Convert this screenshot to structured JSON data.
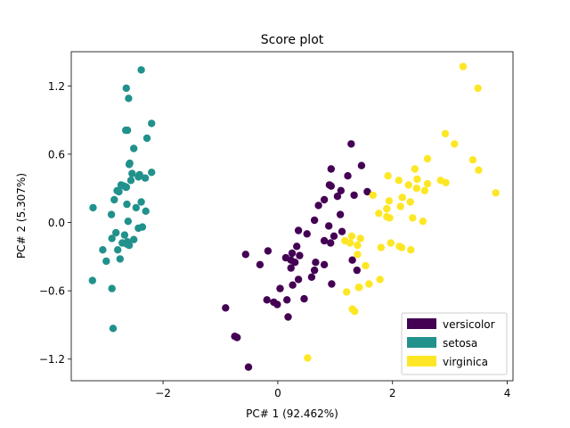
{
  "chart_data": {
    "type": "scatter",
    "title": "Score plot",
    "xlabel": "PC# 1 (92.462%)",
    "ylabel": "PC# 2 (5.307%)",
    "xlim": [
      -3.6,
      4.1
    ],
    "ylim": [
      -1.39,
      1.5
    ],
    "xticks": [
      -2,
      0,
      2,
      4
    ],
    "yticks": [
      -1.2,
      -0.6,
      0.0,
      0.6,
      1.2
    ],
    "xtick_labels": [
      "−2",
      "0",
      "2",
      "4"
    ],
    "ytick_labels": [
      "−1.2",
      "−0.6",
      "0.0",
      "0.6",
      "1.2"
    ],
    "legend_position": "lower-right",
    "series": [
      {
        "name": "versicolor",
        "color": "#440154",
        "points": [
          [
            1.28,
            0.69
          ],
          [
            0.93,
            0.32
          ],
          [
            1.46,
            0.5
          ],
          [
            0.18,
            -0.83
          ],
          [
            1.09,
            0.07
          ],
          [
            0.64,
            -0.42
          ],
          [
            1.1,
            0.28
          ],
          [
            -0.75,
            -1.0
          ],
          [
            1.04,
            0.23
          ],
          [
            -0.01,
            -0.72
          ],
          [
            -0.51,
            -1.27
          ],
          [
            0.51,
            -0.1
          ],
          [
            0.26,
            -0.55
          ],
          [
            0.98,
            -0.12
          ],
          [
            -0.17,
            -0.25
          ],
          [
            0.93,
            0.47
          ],
          [
            0.66,
            -0.35
          ],
          [
            0.23,
            -0.33
          ],
          [
            0.94,
            -0.54
          ],
          [
            0.04,
            -0.58
          ],
          [
            1.12,
            -0.08
          ],
          [
            0.36,
            -0.07
          ],
          [
            1.3,
            -0.33
          ],
          [
            0.92,
            -0.18
          ],
          [
            0.71,
            0.15
          ],
          [
            0.9,
            0.33
          ],
          [
            1.33,
            0.24
          ],
          [
            1.56,
            0.27
          ],
          [
            0.81,
            -0.16
          ],
          [
            -0.31,
            -0.37
          ],
          [
            -0.07,
            -0.7
          ],
          [
            -0.19,
            -0.68
          ],
          [
            0.14,
            -0.31
          ],
          [
            1.38,
            -0.42
          ],
          [
            0.59,
            -0.48
          ],
          [
            0.81,
            0.2
          ],
          [
            1.22,
            0.41
          ],
          [
            0.81,
            -0.37
          ],
          [
            0.25,
            -0.27
          ],
          [
            0.16,
            -0.68
          ],
          [
            0.46,
            -0.67
          ],
          [
            0.89,
            -0.03
          ],
          [
            0.23,
            -0.4
          ],
          [
            -0.71,
            -1.01
          ],
          [
            0.36,
            -0.5
          ],
          [
            0.33,
            -0.21
          ],
          [
            0.38,
            -0.29
          ],
          [
            0.64,
            0.02
          ],
          [
            -0.91,
            -0.75
          ],
          [
            0.3,
            -0.35
          ],
          [
            -0.56,
            -0.28
          ]
        ]
      },
      {
        "name": "setosa",
        "color": "#21918c",
        "points": [
          [
            -2.68,
            0.32
          ],
          [
            -2.71,
            -0.18
          ],
          [
            -2.89,
            -0.14
          ],
          [
            -2.75,
            -0.32
          ],
          [
            -2.73,
            0.33
          ],
          [
            -2.28,
            0.74
          ],
          [
            -2.82,
            -0.09
          ],
          [
            -2.63,
            0.16
          ],
          [
            -2.89,
            -0.58
          ],
          [
            -2.67,
            -0.11
          ],
          [
            -2.51,
            0.65
          ],
          [
            -2.61,
            0.01
          ],
          [
            -2.79,
            -0.24
          ],
          [
            -3.23,
            -0.51
          ],
          [
            -2.64,
            1.18
          ],
          [
            -2.38,
            1.34
          ],
          [
            -2.62,
            0.81
          ],
          [
            -2.65,
            0.31
          ],
          [
            -2.2,
            0.87
          ],
          [
            -2.59,
            0.51
          ],
          [
            -2.31,
            0.39
          ],
          [
            -2.54,
            0.43
          ],
          [
            -3.22,
            0.13
          ],
          [
            -2.3,
            0.1
          ],
          [
            -2.36,
            -0.04
          ],
          [
            -2.51,
            -0.15
          ],
          [
            -2.47,
            0.13
          ],
          [
            -2.56,
            0.37
          ],
          [
            -2.64,
            0.31
          ],
          [
            -2.63,
            -0.19
          ],
          [
            -2.59,
            -0.2
          ],
          [
            -2.41,
            0.42
          ],
          [
            -2.65,
            0.81
          ],
          [
            -2.6,
            1.09
          ],
          [
            -2.99,
            -0.34
          ],
          [
            -2.9,
            0.07
          ],
          [
            -2.77,
            0.27
          ],
          [
            -2.85,
            0.2
          ],
          [
            -2.38,
            0.18
          ],
          [
            -2.62,
            -0.17
          ],
          [
            -2.43,
            -0.05
          ],
          [
            -2.2,
            0.44
          ],
          [
            -2.64,
            0.31
          ],
          [
            -2.87,
            -0.93
          ],
          [
            -2.43,
            0.4
          ],
          [
            -3.05,
            -0.24
          ],
          [
            -2.8,
            0.28
          ],
          [
            -2.58,
            0.52
          ]
        ]
      },
      {
        "name": "virginica",
        "color": "#fde725",
        "points": [
          [
            2.53,
            0.01
          ],
          [
            1.41,
            -0.57
          ],
          [
            2.61,
            0.34
          ],
          [
            1.97,
            -0.18
          ],
          [
            2.35,
            0.04
          ],
          [
            3.4,
            0.55
          ],
          [
            0.52,
            -1.19
          ],
          [
            2.93,
            0.35
          ],
          [
            2.32,
            -0.24
          ],
          [
            2.92,
            0.78
          ],
          [
            1.66,
            0.24
          ],
          [
            1.8,
            -0.22
          ],
          [
            2.17,
            0.22
          ],
          [
            1.34,
            -0.78
          ],
          [
            1.59,
            -0.54
          ],
          [
            1.9,
            0.12
          ],
          [
            1.95,
            0.04
          ],
          [
            3.49,
            1.18
          ],
          [
            3.8,
            0.26
          ],
          [
            1.3,
            -0.76
          ],
          [
            2.43,
            0.38
          ],
          [
            1.2,
            -0.61
          ],
          [
            3.5,
            0.46
          ],
          [
            1.39,
            -0.2
          ],
          [
            2.28,
            0.33
          ],
          [
            2.61,
            0.56
          ],
          [
            1.26,
            -0.18
          ],
          [
            1.29,
            -0.12
          ],
          [
            2.12,
            -0.21
          ],
          [
            2.39,
            0.47
          ],
          [
            2.84,
            0.37
          ],
          [
            3.23,
            1.37
          ],
          [
            2.16,
            -0.22
          ],
          [
            1.44,
            -0.14
          ],
          [
            1.78,
            -0.5
          ],
          [
            3.08,
            0.69
          ],
          [
            2.14,
            0.14
          ],
          [
            1.9,
            0.05
          ],
          [
            1.17,
            -0.16
          ],
          [
            2.11,
            0.37
          ],
          [
            2.31,
            0.18
          ],
          [
            1.92,
            0.41
          ],
          [
            1.42,
            -0.57
          ],
          [
            2.56,
            0.28
          ],
          [
            2.42,
            0.3
          ],
          [
            1.94,
            0.19
          ],
          [
            1.53,
            -0.38
          ],
          [
            1.76,
            0.08
          ],
          [
            1.9,
            0.12
          ],
          [
            1.39,
            -0.28
          ]
        ]
      }
    ]
  }
}
